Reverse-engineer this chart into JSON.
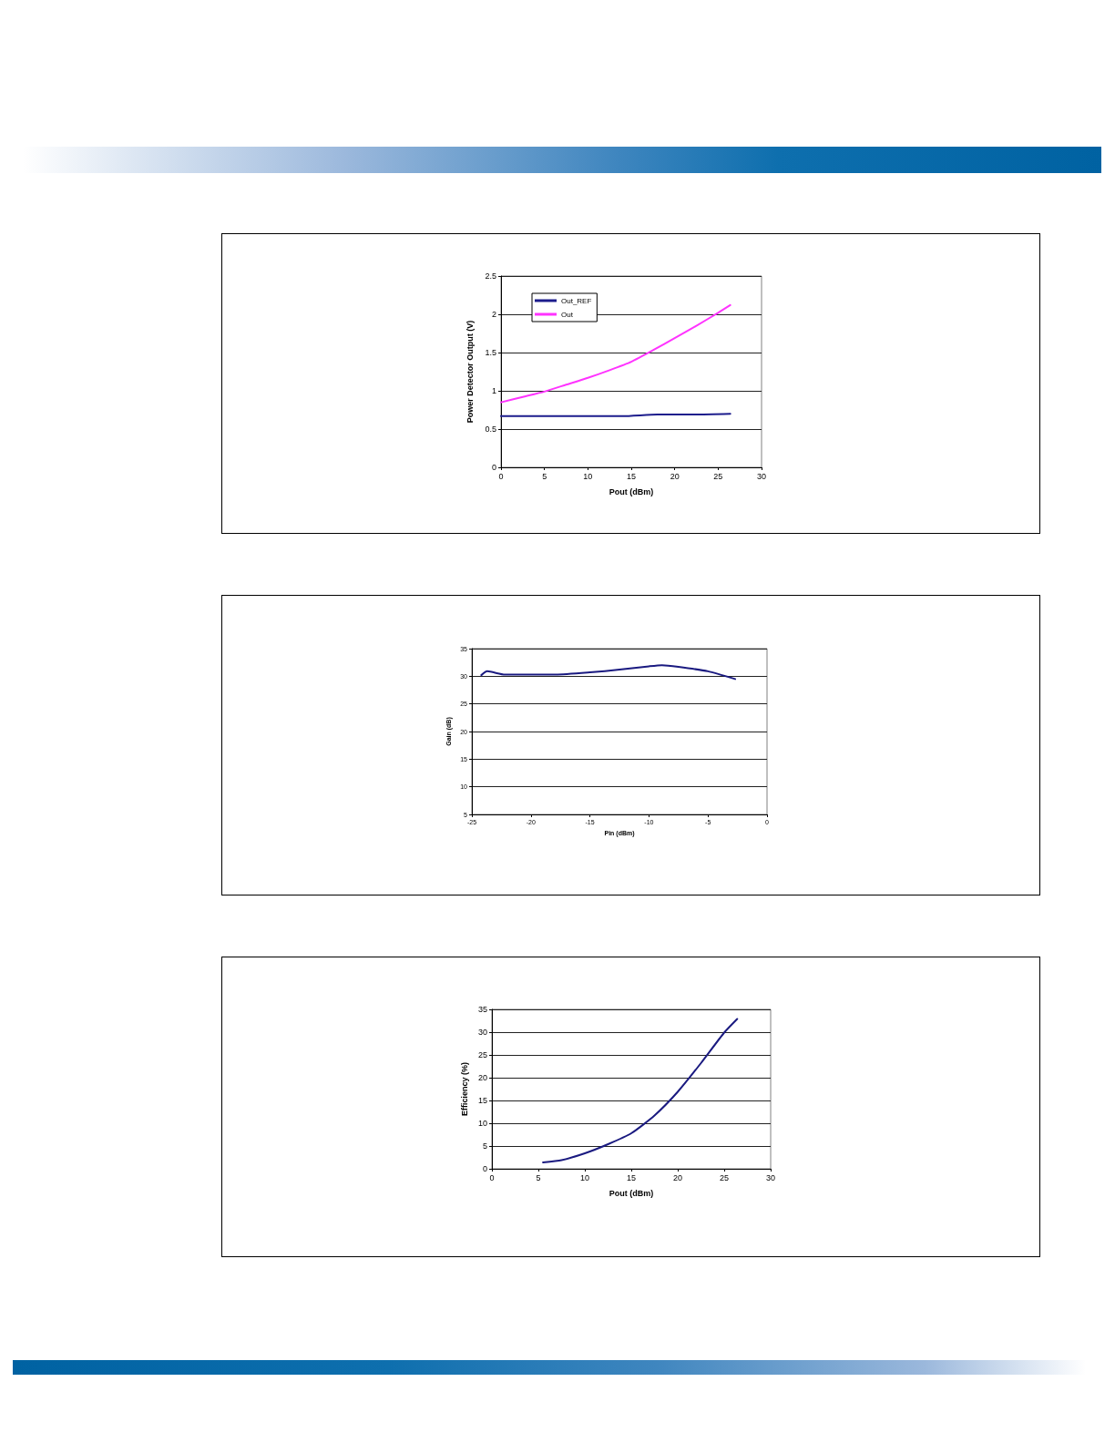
{
  "chart_data": [
    {
      "type": "line",
      "xlabel": "Pout (dBm)",
      "ylabel": "Power Detector Output (V)",
      "xlim": [
        0,
        30
      ],
      "xticks": [
        0,
        5,
        10,
        15,
        20,
        25,
        30
      ],
      "ylim": [
        0,
        2.5
      ],
      "yticks": [
        0,
        0.5,
        1,
        1.5,
        2,
        2.5
      ],
      "grid": "y",
      "legend": "top left",
      "marker": "none",
      "series": [
        {
          "name": "Out_REF",
          "color": "#1c1c8c",
          "x": [
            0,
            10,
            14,
            18,
            22,
            26.4
          ],
          "values": [
            0.67,
            0.67,
            0.67,
            0.69,
            0.69,
            0.7
          ]
        },
        {
          "name": "Out",
          "color": "#ff33ff",
          "x": [
            0,
            2.5,
            5,
            7.5,
            10,
            12.5,
            15,
            17.5,
            20,
            22.5,
            25,
            26.4
          ],
          "values": [
            0.85,
            0.92,
            0.99,
            1.08,
            1.17,
            1.27,
            1.38,
            1.53,
            1.69,
            1.85,
            2.02,
            2.12
          ]
        }
      ]
    },
    {
      "type": "line",
      "xlabel": "Pin (dBm)",
      "ylabel": "Gain (dB)",
      "xlim": [
        -25,
        0
      ],
      "xticks": [
        -25,
        -20,
        -15,
        -10,
        -5,
        0
      ],
      "ylim": [
        5,
        35
      ],
      "yticks": [
        5,
        10,
        15,
        20,
        25,
        30,
        35
      ],
      "grid": "y",
      "marker": "none",
      "series": [
        {
          "color": "#1a1a80",
          "x": [
            -24.2,
            -23.7,
            -22.2,
            -20,
            -17.9,
            -15,
            -12.5,
            -10,
            -8.9,
            -7.5,
            -5,
            -2.7
          ],
          "values": [
            30.2,
            30.9,
            30.3,
            30.3,
            30.3,
            30.7,
            31.2,
            31.8,
            32.0,
            31.7,
            30.9,
            29.5
          ]
        }
      ]
    },
    {
      "type": "line",
      "xlabel": "Pout (dBm)",
      "ylabel": "Efficiency (%)",
      "xlim": [
        0,
        30
      ],
      "xticks": [
        0,
        5,
        10,
        15,
        20,
        25,
        30
      ],
      "ylim": [
        0,
        35
      ],
      "yticks": [
        0,
        5,
        10,
        15,
        20,
        25,
        30,
        35
      ],
      "grid": "y",
      "marker": "none",
      "series": [
        {
          "color": "#1a1a80",
          "x": [
            5.5,
            7.5,
            10,
            12.5,
            15,
            17.5,
            20,
            22.5,
            25,
            26.4
          ],
          "values": [
            1.4,
            1.9,
            3.4,
            5.4,
            7.8,
            11.7,
            16.9,
            23.2,
            29.9,
            32.9
          ]
        }
      ]
    }
  ]
}
